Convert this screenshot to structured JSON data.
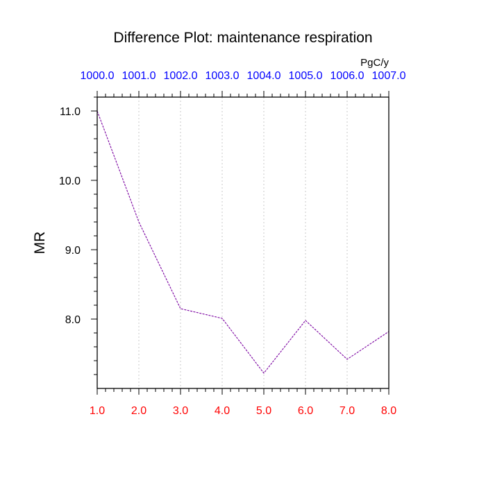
{
  "chart_data": {
    "type": "line",
    "title": "Difference Plot: maintenance respiration",
    "units": "PgC/y",
    "ylabel": "MR",
    "xlabel": "",
    "x": [
      1.0,
      2.0,
      3.0,
      4.0,
      5.0,
      6.0,
      7.0,
      8.0
    ],
    "x_tick_labels": [
      "1.0",
      "2.0",
      "3.0",
      "4.0",
      "5.0",
      "6.0",
      "7.0",
      "8.0"
    ],
    "top_tick_labels": [
      "1000.0",
      "1001.0",
      "1002.0",
      "1003.0",
      "1004.0",
      "1005.0",
      "1006.0",
      "1007.0"
    ],
    "y_ticks": [
      8.0,
      9.0,
      10.0,
      11.0
    ],
    "y_tick_labels": [
      "8.0",
      "9.0",
      "10.0",
      "11.0"
    ],
    "xlim": [
      1.0,
      8.0
    ],
    "ylim": [
      7.0,
      11.2
    ],
    "series": [
      {
        "values": [
          11.0,
          9.4,
          8.15,
          8.01,
          7.22,
          7.98,
          7.42,
          7.82
        ]
      }
    ],
    "grid": "vertical dotted",
    "colors": {
      "line": "#7a00a0",
      "bottom_ticks": "#ff0000",
      "top_ticks": "#0000ff",
      "grid": "#c8c8c8",
      "axes": "#000000"
    }
  }
}
